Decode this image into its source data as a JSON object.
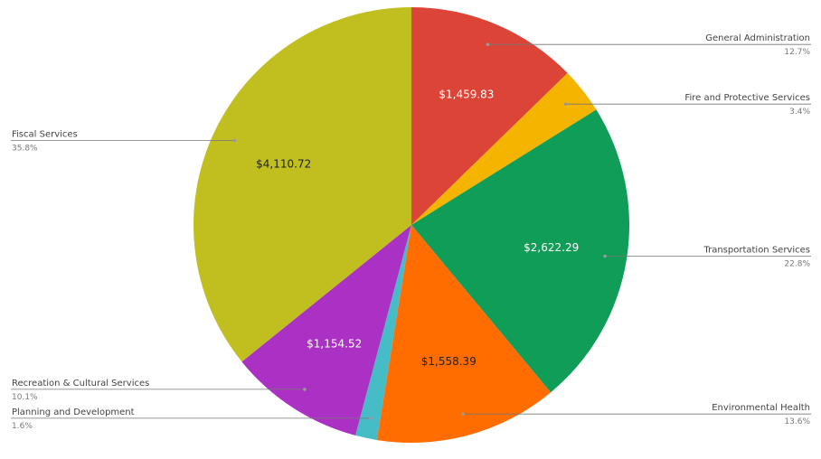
{
  "chart_data": {
    "type": "pie",
    "title": "",
    "slices": [
      {
        "name": "General Administration",
        "value": 1459.83,
        "value_label": "$1,459.83",
        "percent_label": "12.7%",
        "color": "#dc4437",
        "side": "right",
        "value_text_color": "#ffffff"
      },
      {
        "name": "Fire and Protective Services",
        "value": 391.0,
        "value_label": "",
        "percent_label": "3.4%",
        "color": "#f4b400",
        "side": "right",
        "value_text_color": "#ffffff"
      },
      {
        "name": "Transportation Services",
        "value": 2622.29,
        "value_label": "$2,622.29",
        "percent_label": "22.8%",
        "color": "#0f9d58",
        "side": "right",
        "value_text_color": "#ffffff"
      },
      {
        "name": "Environmental Health",
        "value": 1558.39,
        "value_label": "$1,558.39",
        "percent_label": "13.6%",
        "color": "#ff6d00",
        "side": "right",
        "value_text_color": "#222222"
      },
      {
        "name": "Planning and Development",
        "value": 184.0,
        "value_label": "",
        "percent_label": "1.6%",
        "color": "#46bdc6",
        "side": "left",
        "value_text_color": "#ffffff"
      },
      {
        "name": "Recreation & Cultural Services",
        "value": 1154.52,
        "value_label": "$1,154.52",
        "percent_label": "10.1%",
        "color": "#ab30c4",
        "side": "left",
        "value_text_color": "#ffffff"
      },
      {
        "name": "Fiscal Services",
        "value": 4110.72,
        "value_label": "$4,110.72",
        "percent_label": "35.8%",
        "color": "#c0bf1f",
        "side": "left",
        "value_text_color": "#222222"
      }
    ],
    "legend": "none"
  }
}
